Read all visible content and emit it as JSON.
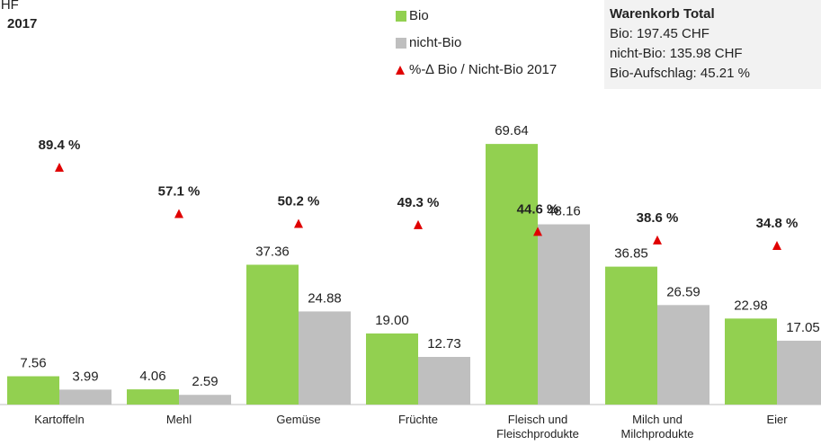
{
  "chart_data": {
    "type": "bar",
    "title": "CHF",
    "subtitle": "2017",
    "categories": [
      "Kartoffeln",
      "Mehl",
      "Gemüse",
      "Früchte",
      "Fleisch und Fleischprodukte",
      "Milch und Milchprodukte",
      "Eier"
    ],
    "series": [
      {
        "name": "Bio",
        "color": "#92d050",
        "values": [
          7.56,
          4.06,
          37.36,
          19.0,
          69.64,
          36.85,
          22.98
        ],
        "value_labels": [
          "7.56",
          "4.06",
          "37.36",
          "19.00",
          "69.64",
          "36.85",
          "22.98"
        ]
      },
      {
        "name": "nicht-Bio",
        "color": "#bfbfbf",
        "values": [
          3.99,
          2.59,
          24.88,
          12.73,
          48.16,
          26.59,
          17.05
        ],
        "value_labels": [
          "3.99",
          "2.59",
          "24.88",
          "12.73",
          "48.16",
          "26.59",
          "17.05"
        ]
      },
      {
        "name": "%-∆ Bio / Nicht-Bio 2017",
        "color": "#e00000",
        "axis": "y2",
        "marker": "triangle",
        "values": [
          89.4,
          57.1,
          50.2,
          49.3,
          44.6,
          38.6,
          34.8
        ],
        "value_labels": [
          "89.4 %",
          "57.1 %",
          "50.2 %",
          "49.3 %",
          "44.6 %",
          "38.6 %",
          "34.8 %"
        ]
      }
    ],
    "ylim": [
      0,
      80
    ],
    "y2lim": [
      -76.3,
      132.7
    ],
    "info_box": {
      "title": "Warenkorb Total",
      "lines": [
        "Bio: 197.45 CHF",
        "nicht-Bio: 135.98 CHF",
        "Bio-Aufschlag: 45.21 %"
      ]
    }
  }
}
